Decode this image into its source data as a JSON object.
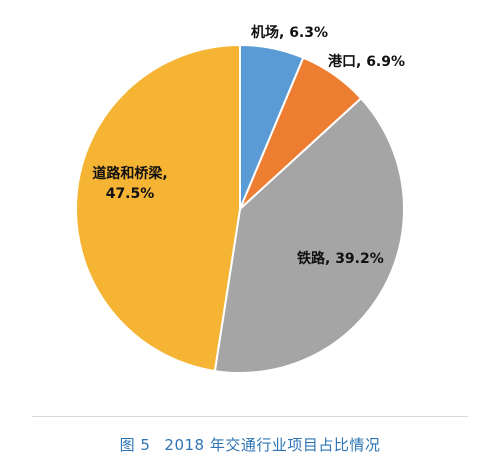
{
  "chart_data": {
    "type": "pie",
    "categories": [
      "机场",
      "港口",
      "铁路",
      "道路和桥梁"
    ],
    "values": [
      6.3,
      6.9,
      39.2,
      47.5
    ],
    "value_suffix": "%",
    "colors": [
      "#5b9bd5",
      "#ed7d31",
      "#a5a5a5",
      "#f5b434"
    ],
    "labels": [
      [
        "机场, 6.3%"
      ],
      [
        "港口, 6.9%"
      ],
      [
        "铁路, 39.2%"
      ],
      [
        "道路和桥梁,",
        "47.5%"
      ]
    ],
    "start_angle_deg": 0,
    "direction": "clockwise"
  },
  "caption": {
    "figure_no": "图 5",
    "text": "2018 年交通行业项目占比情况"
  }
}
